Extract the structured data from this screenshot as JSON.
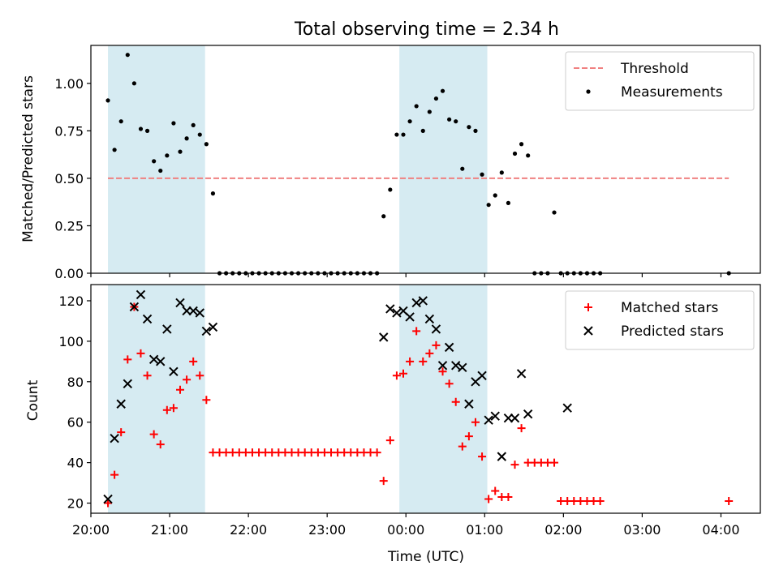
{
  "chart_data": [
    {
      "type": "scatter",
      "title": "Total observing time = 2.34 h",
      "ylabel": "Matched/Predicted stars",
      "xlabel": "",
      "ylim": [
        0,
        1.2
      ],
      "xlim": [
        "20:00",
        "04:30"
      ],
      "yticks": [
        "0.00",
        "0.25",
        "0.50",
        "0.75",
        "1.00"
      ],
      "legend_position": "top-right",
      "threshold": {
        "name": "Threshold",
        "value": 0.5,
        "x_start": "20:13",
        "x_end": "04:06",
        "color": "#f08080"
      },
      "shaded_intervals": [
        [
          "20:13",
          "21:27"
        ],
        [
          "23:55",
          "01:02"
        ]
      ],
      "series": [
        {
          "name": "Measurements",
          "color": "#000000",
          "points": [
            [
              "20:13",
              0.91
            ],
            [
              "20:18",
              0.65
            ],
            [
              "20:23",
              0.8
            ],
            [
              "20:28",
              1.15
            ],
            [
              "20:33",
              1.0
            ],
            [
              "20:38",
              0.76
            ],
            [
              "20:43",
              0.75
            ],
            [
              "20:48",
              0.59
            ],
            [
              "20:53",
              0.54
            ],
            [
              "20:58",
              0.62
            ],
            [
              "21:03",
              0.79
            ],
            [
              "21:08",
              0.64
            ],
            [
              "21:13",
              0.71
            ],
            [
              "21:18",
              0.78
            ],
            [
              "21:23",
              0.73
            ],
            [
              "21:28",
              0.68
            ],
            [
              "21:33",
              0.42
            ],
            [
              "21:38",
              0.0
            ],
            [
              "21:43",
              0.0
            ],
            [
              "21:48",
              0.0
            ],
            [
              "21:53",
              0.0
            ],
            [
              "21:58",
              0.0
            ],
            [
              "22:03",
              0.0
            ],
            [
              "22:08",
              0.0
            ],
            [
              "22:13",
              0.0
            ],
            [
              "22:18",
              0.0
            ],
            [
              "22:23",
              0.0
            ],
            [
              "22:28",
              0.0
            ],
            [
              "22:33",
              0.0
            ],
            [
              "22:38",
              0.0
            ],
            [
              "22:43",
              0.0
            ],
            [
              "22:48",
              0.0
            ],
            [
              "22:53",
              0.0
            ],
            [
              "22:58",
              0.0
            ],
            [
              "23:03",
              0.0
            ],
            [
              "23:08",
              0.0
            ],
            [
              "23:13",
              0.0
            ],
            [
              "23:18",
              0.0
            ],
            [
              "23:23",
              0.0
            ],
            [
              "23:28",
              0.0
            ],
            [
              "23:33",
              0.0
            ],
            [
              "23:38",
              0.0
            ],
            [
              "23:43",
              0.3
            ],
            [
              "23:48",
              0.44
            ],
            [
              "23:53",
              0.73
            ],
            [
              "23:58",
              0.73
            ],
            [
              "00:03",
              0.8
            ],
            [
              "00:08",
              0.88
            ],
            [
              "00:13",
              0.75
            ],
            [
              "00:18",
              0.85
            ],
            [
              "00:23",
              0.92
            ],
            [
              "00:28",
              0.96
            ],
            [
              "00:33",
              0.81
            ],
            [
              "00:38",
              0.8
            ],
            [
              "00:43",
              0.55
            ],
            [
              "00:48",
              0.77
            ],
            [
              "00:53",
              0.75
            ],
            [
              "00:58",
              0.52
            ],
            [
              "01:03",
              0.36
            ],
            [
              "01:08",
              0.41
            ],
            [
              "01:13",
              0.53
            ],
            [
              "01:18",
              0.37
            ],
            [
              "01:23",
              0.63
            ],
            [
              "01:28",
              0.68
            ],
            [
              "01:33",
              0.62
            ],
            [
              "01:38",
              0.0
            ],
            [
              "01:43",
              0.0
            ],
            [
              "01:48",
              0.0
            ],
            [
              "01:53",
              0.32
            ],
            [
              "01:58",
              0.0
            ],
            [
              "02:03",
              0.0
            ],
            [
              "02:08",
              0.0
            ],
            [
              "02:13",
              0.0
            ],
            [
              "02:18",
              0.0
            ],
            [
              "02:23",
              0.0
            ],
            [
              "02:28",
              0.0
            ],
            [
              "04:06",
              0.0
            ]
          ]
        }
      ]
    },
    {
      "type": "scatter",
      "title": "",
      "ylabel": "Count",
      "xlabel": "Time (UTC)",
      "ylim": [
        15,
        128
      ],
      "xlim": [
        "20:00",
        "04:30"
      ],
      "yticks": [
        "20",
        "40",
        "60",
        "80",
        "100",
        "120"
      ],
      "xticks": [
        "20:00",
        "21:00",
        "22:00",
        "23:00",
        "00:00",
        "01:00",
        "02:00",
        "03:00",
        "04:00"
      ],
      "legend_position": "top-right",
      "shaded_intervals": [
        [
          "20:13",
          "21:27"
        ],
        [
          "23:55",
          "01:02"
        ]
      ],
      "series": [
        {
          "name": "Matched stars",
          "color": "#ff0000",
          "marker": "+",
          "points": [
            [
              "20:13",
              20
            ],
            [
              "20:18",
              34
            ],
            [
              "20:23",
              55
            ],
            [
              "20:28",
              91
            ],
            [
              "20:33",
              117
            ],
            [
              "20:38",
              94
            ],
            [
              "20:43",
              83
            ],
            [
              "20:48",
              54
            ],
            [
              "20:53",
              49
            ],
            [
              "20:58",
              66
            ],
            [
              "21:03",
              67
            ],
            [
              "21:08",
              76
            ],
            [
              "21:13",
              81
            ],
            [
              "21:18",
              90
            ],
            [
              "21:23",
              83
            ],
            [
              "21:28",
              71
            ],
            [
              "21:33",
              45
            ],
            [
              "21:38",
              45
            ],
            [
              "21:43",
              45
            ],
            [
              "21:48",
              45
            ],
            [
              "21:53",
              45
            ],
            [
              "21:58",
              45
            ],
            [
              "22:03",
              45
            ],
            [
              "22:08",
              45
            ],
            [
              "22:13",
              45
            ],
            [
              "22:18",
              45
            ],
            [
              "22:23",
              45
            ],
            [
              "22:28",
              45
            ],
            [
              "22:33",
              45
            ],
            [
              "22:38",
              45
            ],
            [
              "22:43",
              45
            ],
            [
              "22:48",
              45
            ],
            [
              "22:53",
              45
            ],
            [
              "22:58",
              45
            ],
            [
              "23:03",
              45
            ],
            [
              "23:08",
              45
            ],
            [
              "23:13",
              45
            ],
            [
              "23:18",
              45
            ],
            [
              "23:23",
              45
            ],
            [
              "23:28",
              45
            ],
            [
              "23:33",
              45
            ],
            [
              "23:38",
              45
            ],
            [
              "23:43",
              31
            ],
            [
              "23:48",
              51
            ],
            [
              "23:53",
              83
            ],
            [
              "23:58",
              84
            ],
            [
              "00:03",
              90
            ],
            [
              "00:08",
              105
            ],
            [
              "00:13",
              90
            ],
            [
              "00:18",
              94
            ],
            [
              "00:23",
              98
            ],
            [
              "00:28",
              85
            ],
            [
              "00:33",
              79
            ],
            [
              "00:38",
              70
            ],
            [
              "00:43",
              48
            ],
            [
              "00:48",
              53
            ],
            [
              "00:53",
              60
            ],
            [
              "00:58",
              43
            ],
            [
              "01:03",
              22
            ],
            [
              "01:08",
              26
            ],
            [
              "01:13",
              23
            ],
            [
              "01:18",
              23
            ],
            [
              "01:23",
              39
            ],
            [
              "01:28",
              57
            ],
            [
              "01:33",
              40
            ],
            [
              "01:38",
              40
            ],
            [
              "01:43",
              40
            ],
            [
              "01:48",
              40
            ],
            [
              "01:53",
              40
            ],
            [
              "01:58",
              21
            ],
            [
              "02:03",
              21
            ],
            [
              "02:08",
              21
            ],
            [
              "02:13",
              21
            ],
            [
              "02:18",
              21
            ],
            [
              "02:23",
              21
            ],
            [
              "02:28",
              21
            ],
            [
              "04:06",
              21
            ]
          ]
        },
        {
          "name": "Predicted stars",
          "color": "#000000",
          "marker": "x",
          "points": [
            [
              "20:13",
              22
            ],
            [
              "20:18",
              52
            ],
            [
              "20:23",
              69
            ],
            [
              "20:28",
              79
            ],
            [
              "20:33",
              117
            ],
            [
              "20:38",
              123
            ],
            [
              "20:43",
              111
            ],
            [
              "20:48",
              91
            ],
            [
              "20:53",
              90
            ],
            [
              "20:58",
              106
            ],
            [
              "21:03",
              85
            ],
            [
              "21:08",
              119
            ],
            [
              "21:13",
              115
            ],
            [
              "21:18",
              115
            ],
            [
              "21:23",
              114
            ],
            [
              "21:28",
              105
            ],
            [
              "21:33",
              107
            ],
            [
              "23:43",
              102
            ],
            [
              "23:48",
              116
            ],
            [
              "23:53",
              114
            ],
            [
              "23:58",
              115
            ],
            [
              "00:03",
              112
            ],
            [
              "00:08",
              119
            ],
            [
              "00:13",
              120
            ],
            [
              "00:18",
              111
            ],
            [
              "00:23",
              106
            ],
            [
              "00:28",
              88
            ],
            [
              "00:33",
              97
            ],
            [
              "00:38",
              88
            ],
            [
              "00:43",
              87
            ],
            [
              "00:48",
              69
            ],
            [
              "00:53",
              80
            ],
            [
              "00:58",
              83
            ],
            [
              "01:03",
              61
            ],
            [
              "01:08",
              63
            ],
            [
              "01:13",
              43
            ],
            [
              "01:18",
              62
            ],
            [
              "01:23",
              62
            ],
            [
              "01:28",
              84
            ],
            [
              "01:33",
              64
            ],
            [
              "02:03",
              67
            ]
          ]
        }
      ]
    }
  ]
}
